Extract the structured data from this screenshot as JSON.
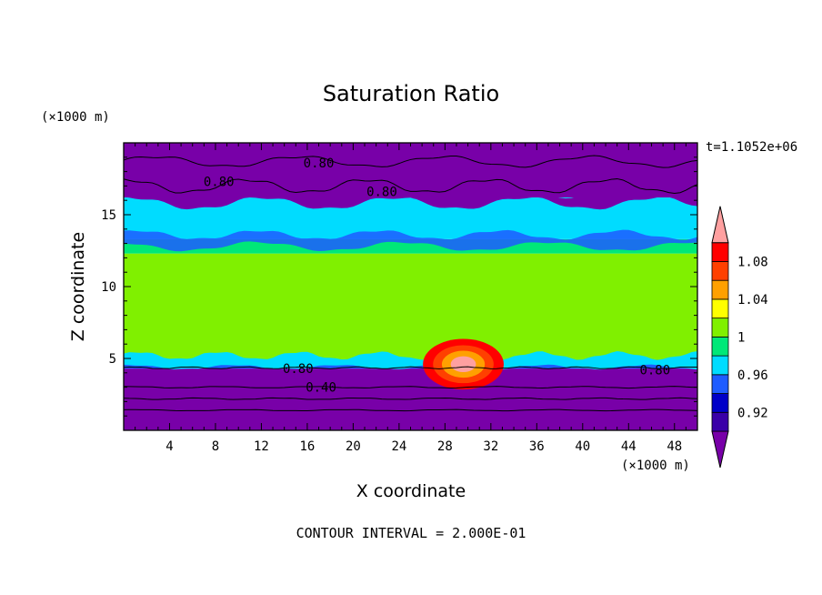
{
  "chart_data": {
    "type": "heatmap",
    "title": "Saturation Ratio",
    "xlabel": "X coordinate",
    "ylabel": "Z coordinate",
    "x_unit": "(×1000 m)",
    "y_unit": "(×1000 m)",
    "time_label": "t=1.1052e+06",
    "footer": "CONTOUR INTERVAL = 2.000E-01",
    "xlim": [
      0,
      50
    ],
    "ylim": [
      0,
      20
    ],
    "x_ticks": [
      4,
      8,
      12,
      16,
      20,
      24,
      28,
      32,
      36,
      40,
      44,
      48
    ],
    "y_ticks": [
      5,
      10,
      15
    ],
    "colorbar": {
      "levels": [
        0.9,
        0.92,
        0.94,
        0.96,
        0.98,
        1.0,
        1.02,
        1.04,
        1.06,
        1.08,
        1.1
      ],
      "tick_labels": [
        "0.92",
        "0.96",
        "1",
        "1.04",
        "1.08"
      ],
      "tick_values": [
        0.92,
        0.96,
        1.0,
        1.04,
        1.08
      ],
      "colors": [
        "#3a00a8",
        "#0000c8",
        "#1e5cff",
        "#00dcff",
        "#00e878",
        "#80f000",
        "#ffff00",
        "#ffa000",
        "#ff4000",
        "#ff0000",
        "#ffa0a0"
      ],
      "under_color": "#7800a8",
      "over_color": "#ffa0a0"
    },
    "bands": [
      {
        "z": [
          0,
          4.3
        ],
        "value": 0.5
      },
      {
        "z": [
          4.3,
          4.9
        ],
        "value": 0.95
      },
      {
        "z": [
          4.9,
          12.3
        ],
        "value": 1.01
      },
      {
        "z": [
          12.3,
          13.3
        ],
        "value": 0.99
      },
      {
        "z": [
          13.3,
          16.2
        ],
        "value": 0.97
      },
      {
        "z": [
          16.2,
          20
        ],
        "value": 0.8
      }
    ],
    "contour_labels": [
      {
        "text": "0.80",
        "x": 17,
        "z": 18.6
      },
      {
        "text": "0.80",
        "x": 8.3,
        "z": 17.3
      },
      {
        "text": "0.80",
        "x": 22.5,
        "z": 16.6
      },
      {
        "text": "0.80",
        "x": 15.2,
        "z": 4.3
      },
      {
        "text": "0.80",
        "x": 46.3,
        "z": 4.2
      },
      {
        "text": "0.40",
        "x": 17.2,
        "z": 3.0
      }
    ]
  }
}
